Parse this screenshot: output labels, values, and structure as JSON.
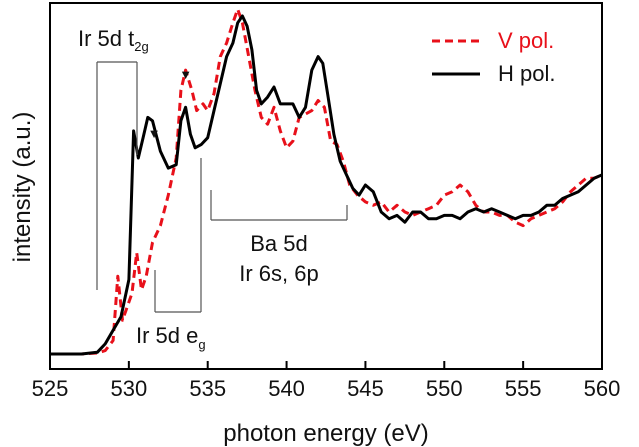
{
  "chart_data": {
    "type": "line",
    "title": "",
    "xlabel": "photon energy (eV)",
    "ylabel": "intensity (a.u.)",
    "xlim": [
      525,
      560
    ],
    "ylim": [
      0,
      1
    ],
    "xticks": [
      525,
      530,
      535,
      540,
      545,
      550,
      555,
      560
    ],
    "yticks_shown": false,
    "grid": false,
    "legend_position": "top-right",
    "colors": {
      "V pol.": "#e8101a",
      "H pol.": "#000000"
    },
    "series": [
      {
        "name": "V pol.",
        "style": "dashed",
        "x": [
          525.0,
          527.0,
          528.0,
          528.5,
          529.0,
          529.3,
          529.6,
          529.9,
          530.2,
          530.5,
          530.8,
          531.1,
          531.5,
          532.0,
          532.5,
          533.0,
          533.3,
          533.6,
          534.0,
          534.3,
          534.7,
          535.0,
          535.4,
          535.8,
          536.2,
          536.6,
          536.9,
          537.2,
          537.6,
          538.0,
          538.4,
          538.8,
          539.2,
          539.6,
          540.0,
          540.4,
          540.8,
          541.2,
          541.6,
          542.0,
          542.4,
          542.8,
          543.2,
          543.6,
          544.0,
          544.5,
          545.0,
          545.5,
          546.0,
          546.5,
          547.0,
          547.5,
          548.0,
          548.5,
          549.0,
          549.5,
          550.0,
          550.5,
          551.0,
          551.5,
          552.0,
          552.5,
          553.0,
          553.5,
          554.0,
          554.5,
          555.0,
          555.5,
          556.0,
          556.5,
          557.0,
          557.5,
          558.0,
          558.5,
          559.0,
          559.5,
          560.0
        ],
        "values": [
          0.0,
          0.0,
          0.003,
          0.01,
          0.04,
          0.23,
          0.1,
          0.14,
          0.18,
          0.3,
          0.19,
          0.23,
          0.33,
          0.38,
          0.47,
          0.58,
          0.78,
          0.84,
          0.78,
          0.72,
          0.74,
          0.72,
          0.77,
          0.88,
          0.92,
          0.98,
          1.02,
          0.98,
          0.88,
          0.78,
          0.7,
          0.68,
          0.73,
          0.66,
          0.61,
          0.63,
          0.7,
          0.71,
          0.72,
          0.75,
          0.73,
          0.63,
          0.62,
          0.57,
          0.5,
          0.47,
          0.45,
          0.44,
          0.45,
          0.42,
          0.44,
          0.42,
          0.41,
          0.42,
          0.43,
          0.44,
          0.47,
          0.48,
          0.5,
          0.48,
          0.44,
          0.42,
          0.42,
          0.41,
          0.41,
          0.39,
          0.38,
          0.4,
          0.41,
          0.42,
          0.43,
          0.45,
          0.48,
          0.5,
          0.52,
          0.52,
          0.53
        ]
      },
      {
        "name": "H pol.",
        "style": "solid",
        "x": [
          525.0,
          527.0,
          528.0,
          528.5,
          529.0,
          529.5,
          530.0,
          530.3,
          530.6,
          530.9,
          531.2,
          531.5,
          532.0,
          532.5,
          533.0,
          533.3,
          533.6,
          533.9,
          534.2,
          534.6,
          535.0,
          535.4,
          535.8,
          536.2,
          536.6,
          536.9,
          537.2,
          537.5,
          537.8,
          538.1,
          538.4,
          538.8,
          539.2,
          539.6,
          540.0,
          540.4,
          540.8,
          541.2,
          541.6,
          542.0,
          542.3,
          542.6,
          543.0,
          543.4,
          543.8,
          544.2,
          544.6,
          545.0,
          545.5,
          546.0,
          546.5,
          547.0,
          547.5,
          548.0,
          548.5,
          549.0,
          549.5,
          550.0,
          550.5,
          551.0,
          551.5,
          552.0,
          552.5,
          553.0,
          553.5,
          554.0,
          554.5,
          555.0,
          555.5,
          556.0,
          556.5,
          557.0,
          557.5,
          558.0,
          558.5,
          559.0,
          559.5,
          560.0
        ],
        "values": [
          0.0,
          0.0,
          0.005,
          0.03,
          0.07,
          0.11,
          0.22,
          0.66,
          0.58,
          0.64,
          0.7,
          0.69,
          0.6,
          0.55,
          0.56,
          0.69,
          0.73,
          0.65,
          0.61,
          0.62,
          0.64,
          0.72,
          0.8,
          0.88,
          0.92,
          0.98,
          1.0,
          0.97,
          0.9,
          0.78,
          0.74,
          0.76,
          0.79,
          0.74,
          0.74,
          0.74,
          0.7,
          0.73,
          0.84,
          0.88,
          0.86,
          0.77,
          0.65,
          0.57,
          0.53,
          0.49,
          0.47,
          0.5,
          0.48,
          0.42,
          0.4,
          0.41,
          0.39,
          0.42,
          0.42,
          0.4,
          0.4,
          0.41,
          0.41,
          0.4,
          0.42,
          0.43,
          0.42,
          0.43,
          0.42,
          0.41,
          0.4,
          0.41,
          0.41,
          0.42,
          0.44,
          0.44,
          0.46,
          0.47,
          0.48,
          0.5,
          0.52,
          0.53
        ]
      }
    ],
    "legend": [
      {
        "label": "V pol.",
        "style": "dashed",
        "color": "#e8101a",
        "text_color": "#e8101a"
      },
      {
        "label": "H pol.",
        "style": "solid",
        "color": "#000000",
        "text_color": "#000000"
      }
    ],
    "annotations": {
      "t2g_base": "Ir 5d t",
      "t2g_sub": "2g",
      "eg_base": "Ir 5d e",
      "eg_sub": "g",
      "ba_line1": "Ba 5d",
      "ba_line2": "Ir 6s, 6p"
    },
    "peak_markers": [
      {
        "x": 531.6,
        "symbol": "▼"
      },
      {
        "x": 533.6,
        "symbol": "▼"
      }
    ]
  }
}
